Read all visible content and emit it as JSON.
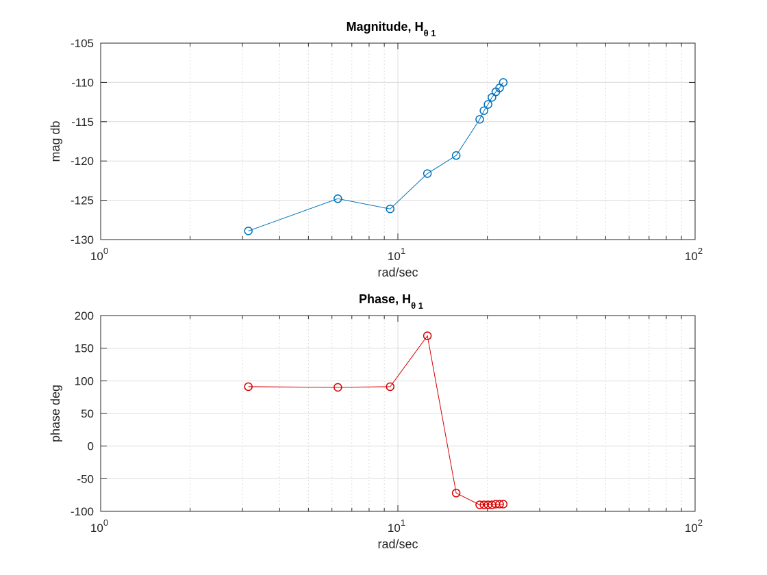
{
  "chart_data": [
    {
      "type": "scatter",
      "title_main": "Magnitude, H",
      "title_sub": "θ 1",
      "xlabel": "rad/sec",
      "ylabel": "mag db",
      "xscale": "log",
      "xlim": [
        1,
        100
      ],
      "ylim": [
        -130,
        -105
      ],
      "x_ticks": [
        {
          "base": "10",
          "exp": "0"
        },
        {
          "base": "10",
          "exp": "1"
        },
        {
          "base": "10",
          "exp": "2"
        }
      ],
      "y_ticks": [
        "-130",
        "-125",
        "-120",
        "-115",
        "-110",
        "-105"
      ],
      "grid": true,
      "color": "#0072BD",
      "marker": "circle",
      "series": [
        {
          "x": [
            3.14,
            6.28,
            9.42,
            12.57,
            15.71,
            18.85,
            19.48,
            20.11,
            20.73,
            21.36,
            21.99,
            22.62
          ],
          "y": [
            -128.9,
            -124.8,
            -126.1,
            -121.6,
            -119.3,
            -114.7,
            -113.6,
            -112.8,
            -111.9,
            -111.2,
            -110.7,
            -110.0
          ]
        }
      ]
    },
    {
      "type": "scatter",
      "title_main": "Phase, H",
      "title_sub": "θ 1",
      "xlabel": "rad/sec",
      "ylabel": "phase deg",
      "xscale": "log",
      "xlim": [
        1,
        100
      ],
      "ylim": [
        -100,
        200
      ],
      "x_ticks": [
        {
          "base": "10",
          "exp": "0"
        },
        {
          "base": "10",
          "exp": "1"
        },
        {
          "base": "10",
          "exp": "2"
        }
      ],
      "y_ticks": [
        "-100",
        "-50",
        "0",
        "50",
        "100",
        "150",
        "200"
      ],
      "grid": true,
      "color": "#D90000",
      "marker": "circle",
      "series": [
        {
          "x": [
            3.14,
            6.28,
            9.42,
            12.57,
            15.71,
            18.85,
            19.48,
            20.11,
            20.73,
            21.36,
            21.99,
            22.62
          ],
          "y": [
            91,
            90,
            91,
            169,
            -72,
            -90,
            -90,
            -90,
            -90,
            -89,
            -89,
            -89
          ]
        }
      ]
    }
  ]
}
